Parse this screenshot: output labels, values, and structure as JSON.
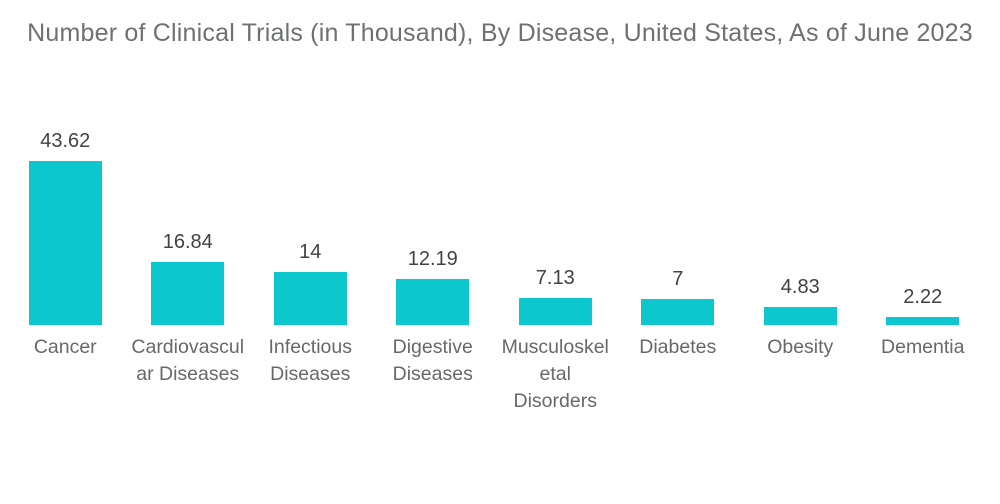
{
  "chart_data": {
    "type": "bar",
    "title": "Number of Clinical Trials (in Thousand), By Disease, United States, As of June 2023",
    "categories": [
      "Cancer",
      "Cardiovascular Diseases",
      "Infectious Diseases",
      "Digestive Diseases",
      "Musculoskeletal Disorders",
      "Diabetes",
      "Obesity",
      "Dementia"
    ],
    "category_display": [
      "Cancer",
      "Cardiovascul\nar Diseases",
      "Infectious\nDiseases",
      "Digestive\nDiseases",
      "Musculoskel\netal\nDisorders",
      "Diabetes",
      "Obesity",
      "Dementia"
    ],
    "values": [
      43.62,
      16.84,
      14,
      12.19,
      7.13,
      7,
      4.83,
      2.22
    ],
    "value_labels": [
      "43.62",
      "16.84",
      "14",
      "12.19",
      "7.13",
      "7",
      "4.83",
      "2.22"
    ],
    "xlabel": "",
    "ylabel": "",
    "ylim": [
      0,
      43.62
    ],
    "grid": false,
    "legend": "none",
    "orientation": "vertical",
    "colors": {
      "bar": "#0cc8ce",
      "title": "#6e7073",
      "value_label": "#414246",
      "category_label": "#66686b",
      "background": "#ffffff"
    }
  }
}
